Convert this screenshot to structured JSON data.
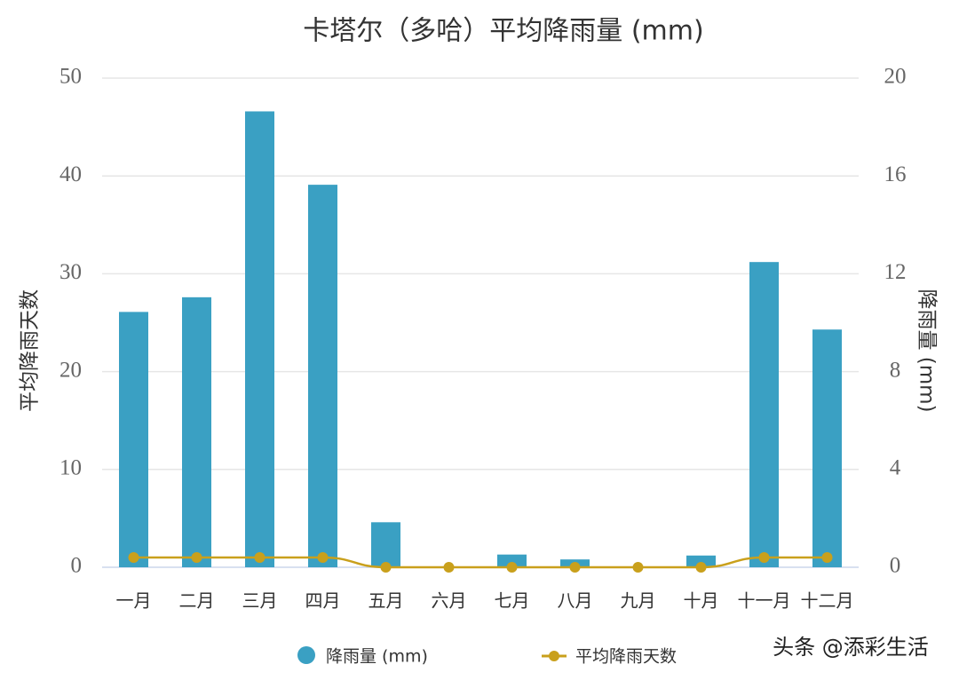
{
  "chart_data": {
    "type": "bar",
    "title": "卡塔尔（多哈）平均降雨量 (mm)",
    "y_label": "平均降雨天数",
    "y2_label": "降雨量 (mm)",
    "categories": [
      "一月",
      "二月",
      "三月",
      "四月",
      "五月",
      "六月",
      "七月",
      "八月",
      "九月",
      "十月",
      "十一月",
      "十二月"
    ],
    "series": [
      {
        "name": "降雨量 (mm)",
        "type": "bar",
        "color": "#3aa0c3",
        "values": [
          26.1,
          27.6,
          46.6,
          39.1,
          4.6,
          0,
          1.3,
          0.8,
          0,
          1.2,
          31.2,
          24.3
        ]
      },
      {
        "name": "平均降雨天数",
        "type": "line",
        "axis": "y2",
        "color": "#c9a01c",
        "values": [
          0.4,
          0.4,
          0.4,
          0.4,
          0,
          0,
          0,
          0,
          0,
          0,
          0.4,
          0.4
        ]
      }
    ],
    "ylim": [
      0,
      50
    ],
    "yticks": [
      0,
      10,
      20,
      30,
      40,
      50
    ],
    "y2lim": [
      0,
      20
    ],
    "y2ticks": [
      0,
      4,
      8,
      12,
      16,
      20
    ],
    "grid": true,
    "legend": "bottom",
    "watermark": "头条 @添彩生活"
  }
}
